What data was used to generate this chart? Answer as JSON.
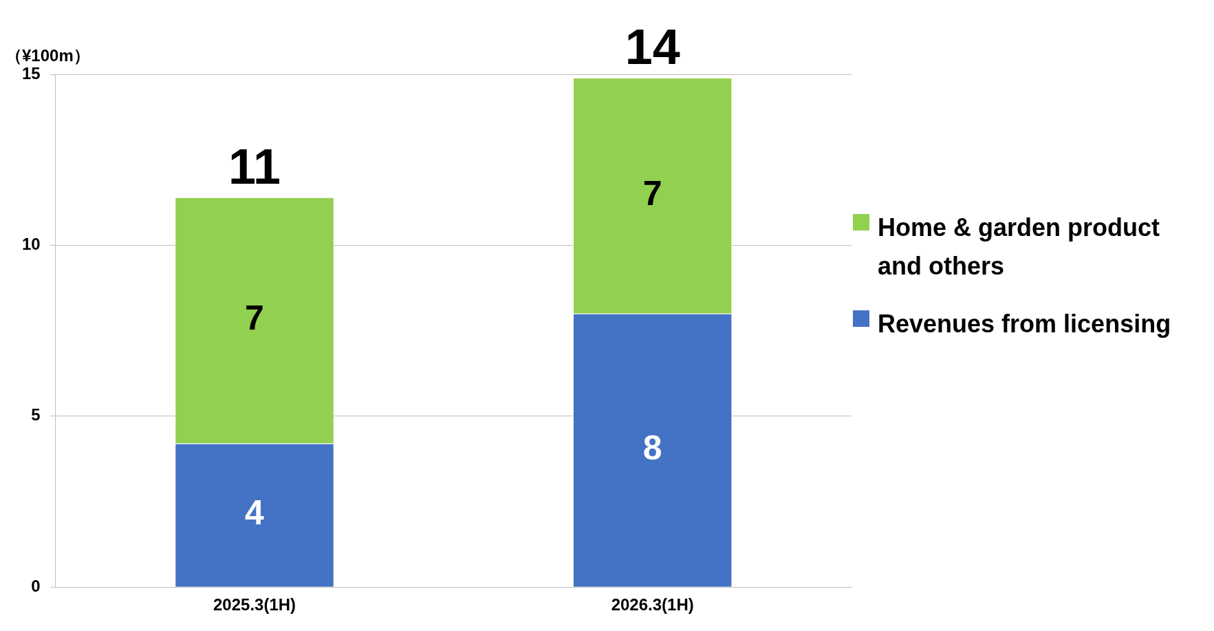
{
  "chart_data": {
    "type": "bar",
    "stacked": true,
    "ylabel": "（¥100m）",
    "categories": [
      "2025.3(1H)",
      "2026.3(1H)"
    ],
    "series": [
      {
        "name": "Revenues from licensing",
        "color": "#4472c4",
        "values": [
          4.2,
          8.0
        ],
        "value_labels": [
          "4",
          "8"
        ]
      },
      {
        "name": "Home & garden product and others",
        "color": "#92d050",
        "values": [
          7.2,
          6.9
        ],
        "value_labels": [
          "7",
          "7"
        ]
      }
    ],
    "totals": [
      "11",
      "14"
    ],
    "ylim": [
      0,
      15
    ],
    "yticks": [
      0,
      5,
      10,
      15
    ],
    "grid": "y",
    "legend": "right"
  }
}
